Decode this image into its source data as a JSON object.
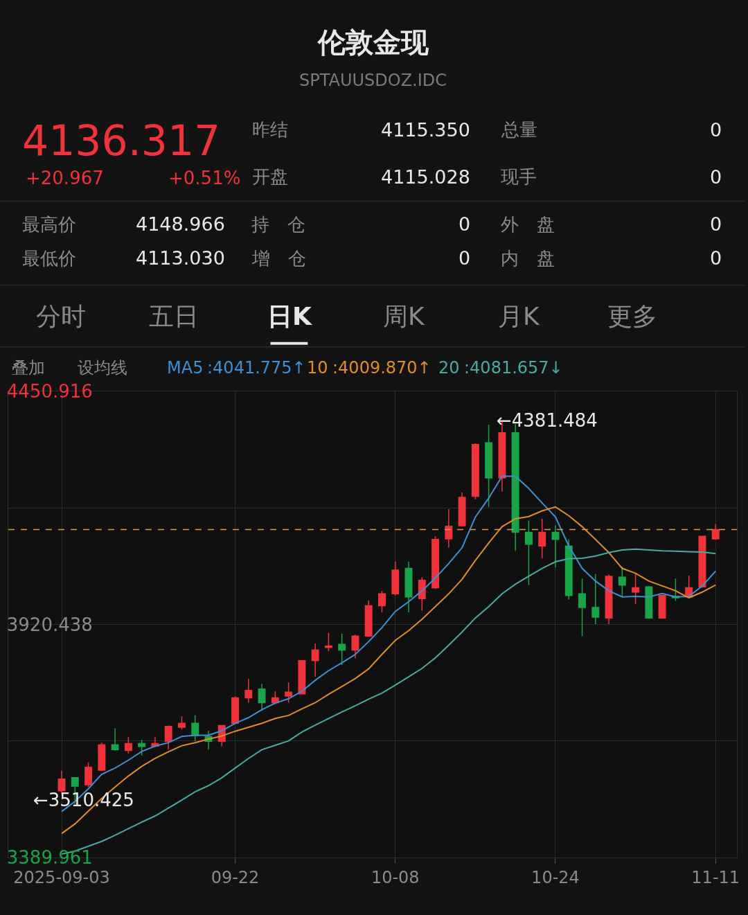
{
  "chart_data": {
    "type": "candlestick",
    "title": "伦敦金现",
    "subtitle": "SPTAUUSDOZ.IDC",
    "categories": [
      "2025-09-03",
      null,
      null,
      null,
      null,
      null,
      null,
      null,
      null,
      null,
      null,
      null,
      null,
      "09-22",
      null,
      null,
      null,
      null,
      null,
      null,
      null,
      null,
      null,
      null,
      null,
      "10-08",
      null,
      null,
      null,
      null,
      null,
      null,
      null,
      null,
      null,
      null,
      null,
      "10-24",
      null,
      null,
      null,
      null,
      null,
      null,
      null,
      null,
      null,
      null,
      null,
      "11-11"
    ],
    "ohlc": [
      [
        3541,
        3587,
        3533,
        3568
      ],
      [
        3571,
        3572,
        3510.425,
        3552
      ],
      [
        3555,
        3606,
        3550,
        3595
      ],
      [
        3588,
        3651,
        3586,
        3646
      ],
      [
        3646,
        3684,
        3633,
        3635
      ],
      [
        3633,
        3664,
        3626,
        3649
      ],
      [
        3649,
        3657,
        3622,
        3642
      ],
      [
        3643,
        3664,
        3641,
        3649
      ],
      [
        3654,
        3690,
        3635,
        3688
      ],
      [
        3686,
        3711,
        3681,
        3695
      ],
      [
        3695,
        3713,
        3654,
        3667
      ],
      [
        3665,
        3678,
        3635,
        3654
      ],
      [
        3654,
        3691,
        3643,
        3690
      ],
      [
        3695,
        3756,
        3693,
        3753
      ],
      [
        3753,
        3796,
        3742,
        3770
      ],
      [
        3773,
        3785,
        3724,
        3742
      ],
      [
        3742,
        3768,
        3739,
        3753
      ],
      [
        3757,
        3788,
        3742,
        3766
      ],
      [
        3762,
        3838,
        3761,
        3838
      ],
      [
        3838,
        3877,
        3801,
        3862
      ],
      [
        3868,
        3901,
        3859,
        3871
      ],
      [
        3875,
        3899,
        3828,
        3862
      ],
      [
        3862,
        3897,
        3843,
        3894
      ],
      [
        3894,
        3975,
        3892,
        3963
      ],
      [
        3963,
        3997,
        3948,
        3990
      ],
      [
        3990,
        4063,
        3986,
        4044
      ],
      [
        4048,
        4063,
        3948,
        3983
      ],
      [
        3979,
        4028,
        3952,
        4021
      ],
      [
        4004,
        4121,
        4001,
        4114
      ],
      [
        4115,
        4183,
        4095,
        4144
      ],
      [
        4145,
        4221,
        4143,
        4210
      ],
      [
        4212,
        4333,
        4205,
        4330
      ],
      [
        4334,
        4375,
        4188,
        4254
      ],
      [
        4254,
        4381.484,
        4223,
        4357
      ],
      [
        4357,
        4377,
        4088,
        4130
      ],
      [
        4130,
        4157,
        4010,
        4103
      ],
      [
        4099,
        4161,
        4071,
        4130
      ],
      [
        4130,
        4146,
        4050,
        4114
      ],
      [
        4099,
        4114,
        3977,
        3986
      ],
      [
        3990,
        4025,
        3894,
        3959
      ],
      [
        3959,
        4035,
        3921,
        3937
      ],
      [
        3935,
        4034,
        3921,
        4030
      ],
      [
        4028,
        4052,
        3984,
        4010
      ],
      [
        3994,
        4037,
        3967,
        4004
      ],
      [
        4006,
        4008,
        3935,
        3935
      ],
      [
        3935,
        3988,
        3935,
        3986
      ],
      [
        3984,
        4025,
        3974,
        3981
      ],
      [
        3983,
        4032,
        3981,
        4004
      ],
      [
        4006,
        4122,
        4004,
        4121
      ],
      [
        4115.028,
        4148.966,
        4113.03,
        4136.317
      ]
    ],
    "colors": [
      "#f0323a",
      "#19a448",
      "#f0323a",
      "#f0323a",
      "#19a448",
      "#f0323a",
      "#19a448",
      "#f0323a",
      "#f0323a",
      "#f0323a",
      "#19a448",
      "#19a448",
      "#f0323a",
      "#f0323a",
      "#f0323a",
      "#19a448",
      "#f0323a",
      "#f0323a",
      "#f0323a",
      "#f0323a",
      "#f0323a",
      "#19a448",
      "#f0323a",
      "#f0323a",
      "#f0323a",
      "#f0323a",
      "#19a448",
      "#f0323a",
      "#f0323a",
      "#f0323a",
      "#f0323a",
      "#f0323a",
      "#19a448",
      "#f0323a",
      "#19a448",
      "#19a448",
      "#f0323a",
      "#19a448",
      "#19a448",
      "#19a448",
      "#19a448",
      "#f0323a",
      "#19a448",
      "#f0323a",
      "#19a448",
      "#f0323a",
      "#19a448",
      "#f0323a",
      "#f0323a",
      "#f0323a"
    ],
    "series": [
      {
        "name": "MA5",
        "type": "line",
        "color": "#3d8fd6",
        "values": [
          3494,
          3517,
          3546,
          3579,
          3593,
          3611,
          3631,
          3643,
          3651,
          3665,
          3668,
          3668,
          3678,
          3695,
          3708,
          3726,
          3741,
          3751,
          3768,
          3793,
          3815,
          3833,
          3852,
          3881,
          3913,
          3950,
          3972,
          3997,
          4026,
          4059,
          4095,
          4165,
          4208,
          4258,
          4258,
          4230,
          4197,
          4165,
          4099,
          4048,
          4019,
          3997,
          3983,
          3984,
          3983,
          3991,
          3983,
          3984,
          4008,
          4041.775
        ]
      },
      {
        "name": "10",
        "type": "line",
        "color": "#e08b2d",
        "values": [
          3444,
          3466,
          3495,
          3524,
          3550,
          3575,
          3597,
          3615,
          3630,
          3644,
          3651,
          3659,
          3666,
          3677,
          3686,
          3695,
          3706,
          3713,
          3728,
          3742,
          3761,
          3779,
          3797,
          3819,
          3852,
          3884,
          3906,
          3932,
          3961,
          3990,
          4023,
          4066,
          4106,
          4143,
          4161,
          4166,
          4179,
          4188,
          4168,
          4143,
          4114,
          4084,
          4048,
          4037,
          4019,
          4008,
          3997,
          3981,
          3994,
          4009.87
        ]
      },
      {
        "name": "20",
        "type": "line",
        "color": "#4aa9a4",
        "values": [
          3397,
          3404,
          3415,
          3426,
          3440,
          3455,
          3470,
          3484,
          3502,
          3520,
          3539,
          3553,
          3571,
          3593,
          3615,
          3635,
          3645,
          3655,
          3675,
          3691,
          3706,
          3721,
          3735,
          3750,
          3764,
          3782,
          3801,
          3820,
          3844,
          3873,
          3903,
          3935,
          3961,
          3990,
          4012,
          4030,
          4048,
          4063,
          4070,
          4071,
          4076,
          4084,
          4090,
          4092,
          4090,
          4088,
          4087,
          4086,
          4085,
          4081.657
        ]
      }
    ],
    "ylim": [
      3389.961,
      4450.916
    ],
    "yticks": [
      4450.916,
      {
        "value": 4185.677,
        "label": null
      },
      3920.438,
      {
        "value": 3655.199,
        "label": null
      },
      3389.961
    ],
    "ref_lines": [
      {
        "axis": "y",
        "value": 4136.317,
        "color": "#e59a3a",
        "line_style": "dashed"
      }
    ],
    "grid": true,
    "legend": "top left",
    "marker": "none",
    "line_style": "solid",
    "annotations": [
      "4136.317",
      "+20.967",
      "+0.51%",
      "昨结",
      "4115.350",
      "总量",
      "0",
      "开盘",
      "4115.028",
      "现手",
      "0",
      "最高价",
      "4148.966",
      "持　仓",
      "0",
      "外　盘",
      "0",
      "最低价",
      "4113.030",
      "增　仓",
      "0",
      "内　盘",
      "0",
      "分时",
      "五日",
      "日K",
      "周K",
      "月K",
      "更多",
      "叠加",
      "设均线",
      ":4041.775↑",
      ":4009.870↑",
      ":4081.657↓",
      "←4381.484",
      "←3510.425"
    ]
  }
}
